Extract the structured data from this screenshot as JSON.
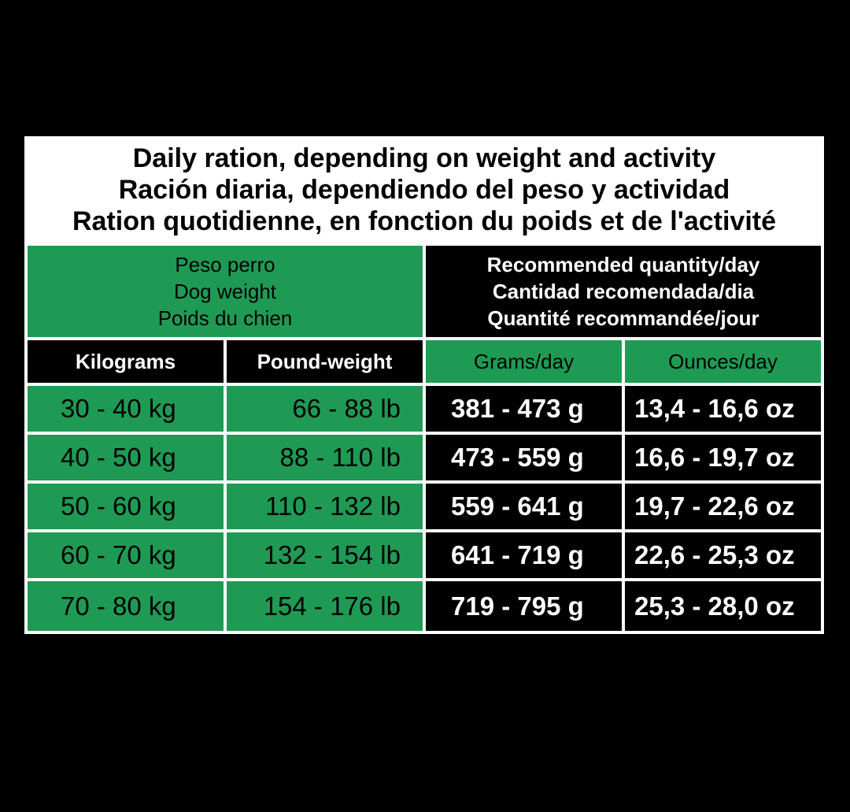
{
  "title": {
    "en": "Daily ration, depending on weight and activity",
    "es": "Ración diaria, dependiendo del peso y actividad",
    "fr": "Ration quotidienne, en fonction du poids et de l'activité"
  },
  "dog_weight_header": {
    "es": "Peso perro",
    "en": "Dog weight",
    "fr": "Poids du chien"
  },
  "quantity_header": {
    "en": "Recommended quantity/day",
    "es": "Cantidad recomendada/dia",
    "fr": "Quantité recommandée/jour"
  },
  "columns": {
    "kilograms": "Kilograms",
    "pounds": "Pound-weight",
    "grams": "Grams/day",
    "ounces": "Ounces/day"
  },
  "rows": [
    {
      "kg": "30 - 40 kg",
      "lb": "66 - 88 lb",
      "g": "381 - 473 g",
      "oz": "13,4 - 16,6 oz"
    },
    {
      "kg": "40 - 50 kg",
      "lb": "88 - 110 lb",
      "g": "473 - 559 g",
      "oz": "16,6 - 19,7 oz"
    },
    {
      "kg": "50 - 60 kg",
      "lb": "110 - 132 lb",
      "g": "559 - 641 g",
      "oz": "19,7 - 22,6 oz"
    },
    {
      "kg": "60 - 70 kg",
      "lb": "132 - 154 lb",
      "g": "641 - 719 g",
      "oz": "22,6 - 25,3 oz"
    },
    {
      "kg": "70 - 80 kg",
      "lb": "154 - 176 lb",
      "g": "719 - 795 g",
      "oz": "25,3 - 28,0 oz"
    }
  ],
  "colors": {
    "green": "#1f9a54",
    "black": "#000000",
    "white": "#ffffff"
  }
}
